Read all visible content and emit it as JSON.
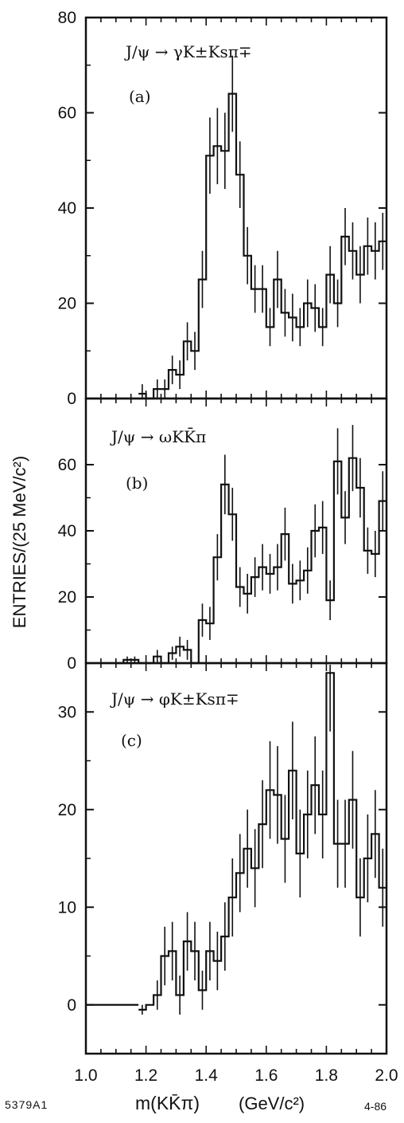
{
  "chart_data": {
    "type": "histogram",
    "shared_x": {
      "label": "m(KK̄π)",
      "unit": "(GeV/c²)",
      "range": [
        1.0,
        2.0
      ],
      "ticks": [
        "1.0",
        "1.2",
        "1.4",
        "1.6",
        "1.8",
        "2.0"
      ]
    },
    "ylabel": "ENTRIES/(25 MeV/c²)",
    "bin_width": 0.025,
    "panels": [
      {
        "id": "a",
        "title": "J/ψ → γK±Ksπ∓",
        "tag": "(a)",
        "ylim": [
          0,
          80
        ],
        "yticks": [
          0,
          20,
          40,
          60,
          80
        ],
        "bin_edges_start": 1.175,
        "values": [
          1,
          0,
          2,
          2,
          6,
          5,
          12,
          10,
          25,
          51,
          53,
          52,
          64,
          47,
          30,
          23,
          23,
          15,
          25,
          18,
          17,
          15,
          20,
          19,
          15,
          26,
          20,
          34,
          31,
          26,
          32,
          31,
          33
        ],
        "errors": [
          2,
          0,
          2,
          2,
          3,
          3,
          4,
          4,
          6,
          8,
          8,
          8,
          8,
          7,
          6,
          5,
          5,
          4,
          6,
          5,
          5,
          4,
          5,
          5,
          4,
          6,
          5,
          6,
          6,
          6,
          6,
          6,
          6
        ]
      },
      {
        "id": "b",
        "title": "J/ψ → ωKK̄π",
        "tag": "(b)",
        "ylim": [
          0,
          80
        ],
        "yticks": [
          0,
          20,
          40,
          60
        ],
        "bin_edges_start": 1.1,
        "values": [
          0,
          1,
          1,
          0,
          0,
          2,
          0,
          3,
          5,
          4,
          0,
          13,
          12,
          32,
          54,
          45,
          23,
          21,
          26,
          29,
          27,
          29,
          39,
          24,
          25,
          28,
          40,
          41,
          19,
          61,
          44,
          62,
          53,
          34,
          33,
          49
        ],
        "errors": [
          0,
          1,
          1,
          0,
          0,
          2,
          0,
          2,
          3,
          3,
          0,
          5,
          5,
          7,
          9,
          8,
          6,
          6,
          6,
          7,
          6,
          7,
          8,
          6,
          6,
          7,
          8,
          8,
          6,
          10,
          8,
          10,
          9,
          7,
          7,
          9
        ]
      },
      {
        "id": "c",
        "title": "J/ψ → φK±Ksπ∓",
        "tag": "(c)",
        "ylim": [
          -5,
          35
        ],
        "yticks": [
          0,
          10,
          20,
          30
        ],
        "bin_edges_start": 1.175,
        "values": [
          -0.5,
          0,
          1,
          5,
          5.5,
          1,
          6.5,
          5.5,
          1.5,
          5.5,
          4.5,
          7,
          11,
          13.5,
          16,
          14,
          18.5,
          22,
          21.5,
          17,
          24,
          15.5,
          19.5,
          22.5,
          19.5,
          34,
          16.5,
          16.5,
          21,
          11,
          15,
          17.5,
          12
        ],
        "errors": [
          0.5,
          0,
          1.5,
          3,
          3,
          2,
          3,
          3,
          2,
          3,
          3,
          3.5,
          4,
          4,
          4,
          4,
          4.5,
          5,
          5,
          4.5,
          5,
          4.5,
          4.5,
          5,
          4.5,
          6,
          4.5,
          4.5,
          5,
          4,
          4.5,
          4.5,
          4
        ]
      }
    ]
  },
  "footer": {
    "left_code": "5379A1",
    "right_code": "4-86"
  }
}
